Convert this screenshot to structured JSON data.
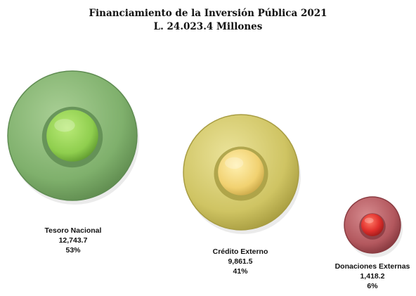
{
  "chart_data": {
    "type": "bubble",
    "title": "Financiamiento de la Inversión Pública 2021",
    "subtitle": "L. 24.023.4 Millones",
    "categories": [
      "Tesoro Nacional",
      "Crédito Externo",
      "Donaciones Externas"
    ],
    "values": [
      12743.7,
      9861.5,
      1418.2
    ],
    "value_labels": [
      "12,743.7",
      "9,861.5",
      "1,418.2"
    ],
    "percent_labels": [
      "53%",
      "41%",
      "6%"
    ],
    "colors": [
      {
        "outer": "#7fb06c",
        "rim": "#5f8c52",
        "inner": "#8fce4e",
        "core": "#a6de62"
      },
      {
        "outer": "#cfc463",
        "rim": "#a89d43",
        "inner": "#f1d170",
        "core": "#ffe48a"
      },
      {
        "outer": "#b3585e",
        "rim": "#8a3c42",
        "inner": "#e0302d",
        "core": "#ff2a22"
      }
    ]
  }
}
